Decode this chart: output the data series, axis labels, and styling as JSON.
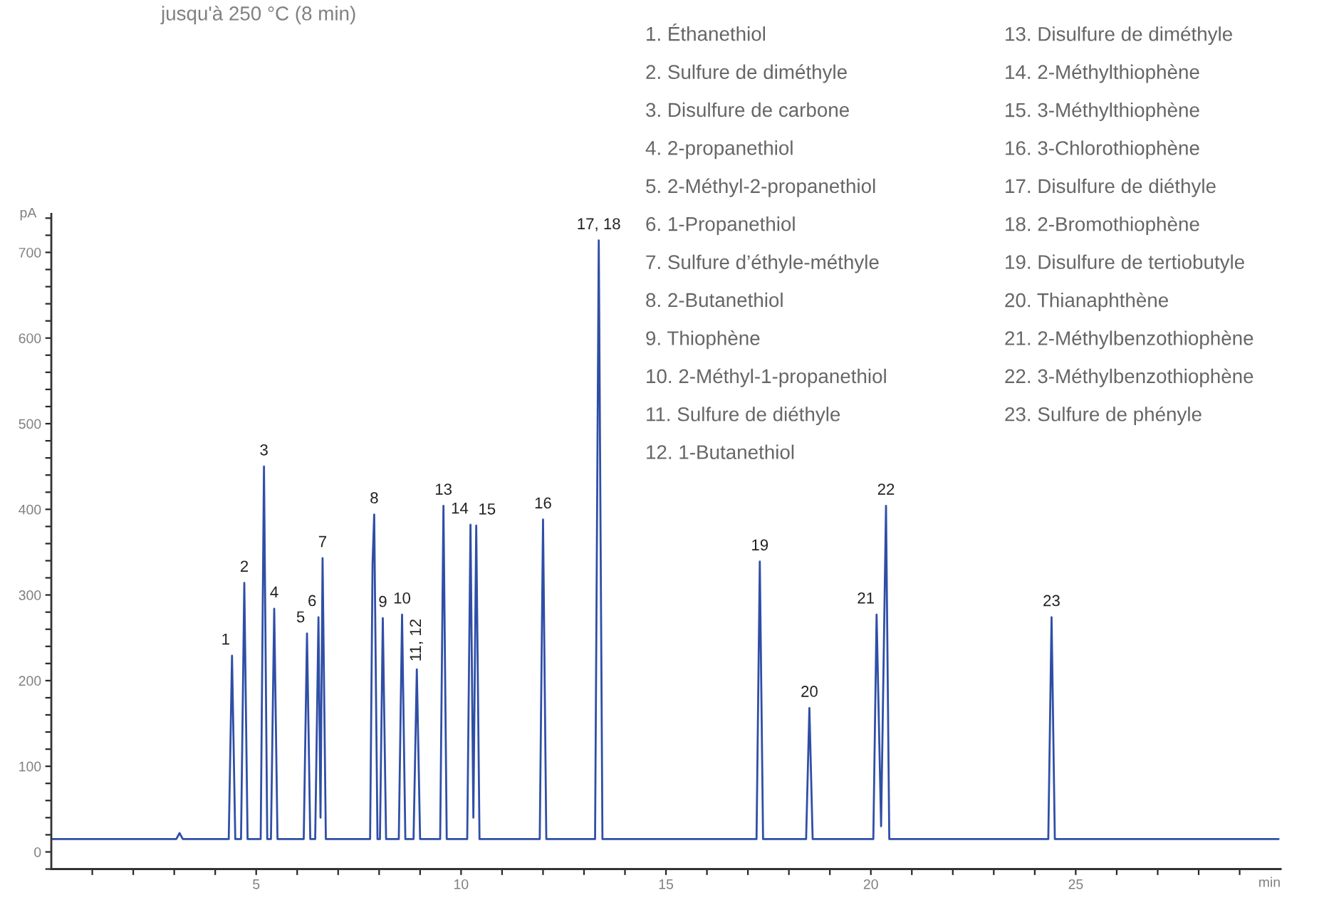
{
  "chart_data": {
    "type": "line",
    "title": "jusqu'à 250 °C (8 min)",
    "xlabel": "min",
    "ylabel": "pA",
    "x": [
      0,
      3.05,
      3.13,
      3.21,
      4.33,
      4.41,
      4.49,
      4.63,
      4.71,
      4.79,
      5.11,
      5.19,
      5.27,
      5.36,
      5.44,
      5.52,
      6.16,
      6.24,
      6.32,
      6.44,
      6.52,
      6.57,
      6.62,
      6.7,
      7.78,
      7.84,
      7.88,
      7.96,
      8.02,
      8.09,
      8.17,
      8.48,
      8.56,
      8.64,
      8.84,
      8.92,
      9.0,
      9.49,
      9.57,
      9.65,
      10.15,
      10.23,
      10.3,
      10.37,
      10.45,
      11.92,
      12.0,
      12.08,
      13.27,
      13.36,
      13.45,
      17.21,
      17.29,
      17.37,
      18.42,
      18.5,
      18.58,
      20.06,
      20.14,
      20.25,
      20.37,
      20.45,
      24.33,
      24.41,
      24.49,
      29.95
    ],
    "series": [
      {
        "color": "#2f4ea6",
        "values": [
          15,
          15,
          22,
          15,
          15,
          229,
          15,
          15,
          314,
          15,
          15,
          450,
          15,
          15,
          284,
          15,
          15,
          255,
          15,
          15,
          274,
          40,
          343,
          15,
          15,
          337,
          394,
          15,
          15,
          273,
          15,
          15,
          277,
          15,
          15,
          213,
          15,
          15,
          404,
          15,
          15,
          382,
          40,
          381,
          15,
          15,
          388,
          15,
          15,
          714,
          15,
          15,
          339,
          15,
          15,
          168,
          15,
          15,
          277,
          30,
          404,
          15,
          15,
          274,
          15,
          15
        ]
      }
    ],
    "xlim": [
      0,
      30
    ],
    "xticks": [
      {
        "value": 1,
        "label": null
      },
      {
        "value": 2,
        "label": null
      },
      {
        "value": 3,
        "label": null
      },
      {
        "value": 4,
        "label": null
      },
      5,
      {
        "value": 6,
        "label": null
      },
      {
        "value": 7,
        "label": null
      },
      {
        "value": 8,
        "label": null
      },
      {
        "value": 9,
        "label": null
      },
      10,
      {
        "value": 11,
        "label": null
      },
      {
        "value": 12,
        "label": null
      },
      {
        "value": 13,
        "label": null
      },
      {
        "value": 14,
        "label": null
      },
      15,
      {
        "value": 16,
        "label": null
      },
      {
        "value": 17,
        "label": null
      },
      {
        "value": 18,
        "label": null
      },
      {
        "value": 19,
        "label": null
      },
      20,
      {
        "value": 21,
        "label": null
      },
      {
        "value": 22,
        "label": null
      },
      {
        "value": 23,
        "label": null
      },
      {
        "value": 24,
        "label": null
      },
      25,
      {
        "value": 26,
        "label": null
      },
      {
        "value": 27,
        "label": null
      },
      {
        "value": 28,
        "label": null
      },
      {
        "value": 29,
        "label": null
      }
    ],
    "ylim": [
      -20,
      745
    ],
    "yticks": [
      {
        "value": -20,
        "label": null
      },
      0,
      {
        "value": 20,
        "label": null
      },
      {
        "value": 40,
        "label": null
      },
      {
        "value": 60,
        "label": null
      },
      {
        "value": 80,
        "label": null
      },
      100,
      {
        "value": 120,
        "label": null
      },
      {
        "value": 140,
        "label": null
      },
      {
        "value": 160,
        "label": null
      },
      {
        "value": 180,
        "label": null
      },
      200,
      {
        "value": 220,
        "label": null
      },
      {
        "value": 240,
        "label": null
      },
      {
        "value": 260,
        "label": null
      },
      {
        "value": 280,
        "label": null
      },
      300,
      {
        "value": 320,
        "label": null
      },
      {
        "value": 340,
        "label": null
      },
      {
        "value": 360,
        "label": null
      },
      {
        "value": 380,
        "label": null
      },
      400,
      {
        "value": 420,
        "label": null
      },
      {
        "value": 440,
        "label": null
      },
      {
        "value": 460,
        "label": null
      },
      {
        "value": 480,
        "label": null
      },
      500,
      {
        "value": 520,
        "label": null
      },
      {
        "value": 540,
        "label": null
      },
      {
        "value": 560,
        "label": null
      },
      {
        "value": 580,
        "label": null
      },
      600,
      {
        "value": 620,
        "label": null
      },
      {
        "value": 640,
        "label": null
      },
      {
        "value": 660,
        "label": null
      },
      {
        "value": 680,
        "label": null
      },
      700,
      {
        "value": 720,
        "label": null
      },
      {
        "value": 740,
        "label": null
      }
    ],
    "grid": false,
    "legend": false,
    "marker": "none",
    "line_style": "solid",
    "annotations": [
      {
        "text": "1",
        "x": 4.41,
        "y": 229
      },
      {
        "text": "2",
        "x": 4.71,
        "y": 314
      },
      {
        "text": "3",
        "x": 5.19,
        "y": 450
      },
      {
        "text": "4",
        "x": 5.44,
        "y": 284
      },
      {
        "text": "5",
        "x": 6.24,
        "y": 255
      },
      {
        "text": "6",
        "x": 6.52,
        "y": 274
      },
      {
        "text": "7",
        "x": 6.62,
        "y": 343
      },
      {
        "text": "8",
        "x": 7.88,
        "y": 394
      },
      {
        "text": "9",
        "x": 8.09,
        "y": 273
      },
      {
        "text": "10",
        "x": 8.56,
        "y": 277
      },
      {
        "text": "11, 12",
        "x": 8.92,
        "y": 213
      },
      {
        "text": "13",
        "x": 9.57,
        "y": 404
      },
      {
        "text": "14",
        "x": 10.23,
        "y": 382
      },
      {
        "text": "15",
        "x": 10.37,
        "y": 381
      },
      {
        "text": "16",
        "x": 12.0,
        "y": 388
      },
      {
        "text": "17, 18",
        "x": 13.36,
        "y": 714
      },
      {
        "text": "19",
        "x": 17.29,
        "y": 339
      },
      {
        "text": "20",
        "x": 18.5,
        "y": 168
      },
      {
        "text": "21",
        "x": 20.14,
        "y": 277
      },
      {
        "text": "22",
        "x": 20.37,
        "y": 404
      },
      {
        "text": "23",
        "x": 24.41,
        "y": 274
      },
      "1. Éthanethiol",
      "2. Sulfure de diméthyle",
      "3. Disulfure de carbone",
      "4. 2-propanethiol",
      "5. 2-Méthyl-2-propanethiol",
      "6. 1-Propanethiol",
      "7. Sulfure d’éthyle-méthyle",
      "8. 2-Butanethiol",
      "9. Thiophène",
      "10. 2-Méthyl-1-propanethiol",
      "11. Sulfure de diéthyle",
      "12. 1-Butanethiol",
      "13. Disulfure de diméthyle",
      "14. 2-Méthylthiophène",
      "15. 3-Méthylthiophène",
      "16. 3-Chlorothiophène",
      "17. Disulfure de diéthyle",
      "18. 2-Bromothiophène",
      "19. Disulfure de tertiobutyle",
      "20. Thianaphthène",
      "21. 2-Méthylbenzothiophène",
      "22. 3-Méthylbenzothiophène",
      "23. Sulfure de phényle"
    ]
  }
}
